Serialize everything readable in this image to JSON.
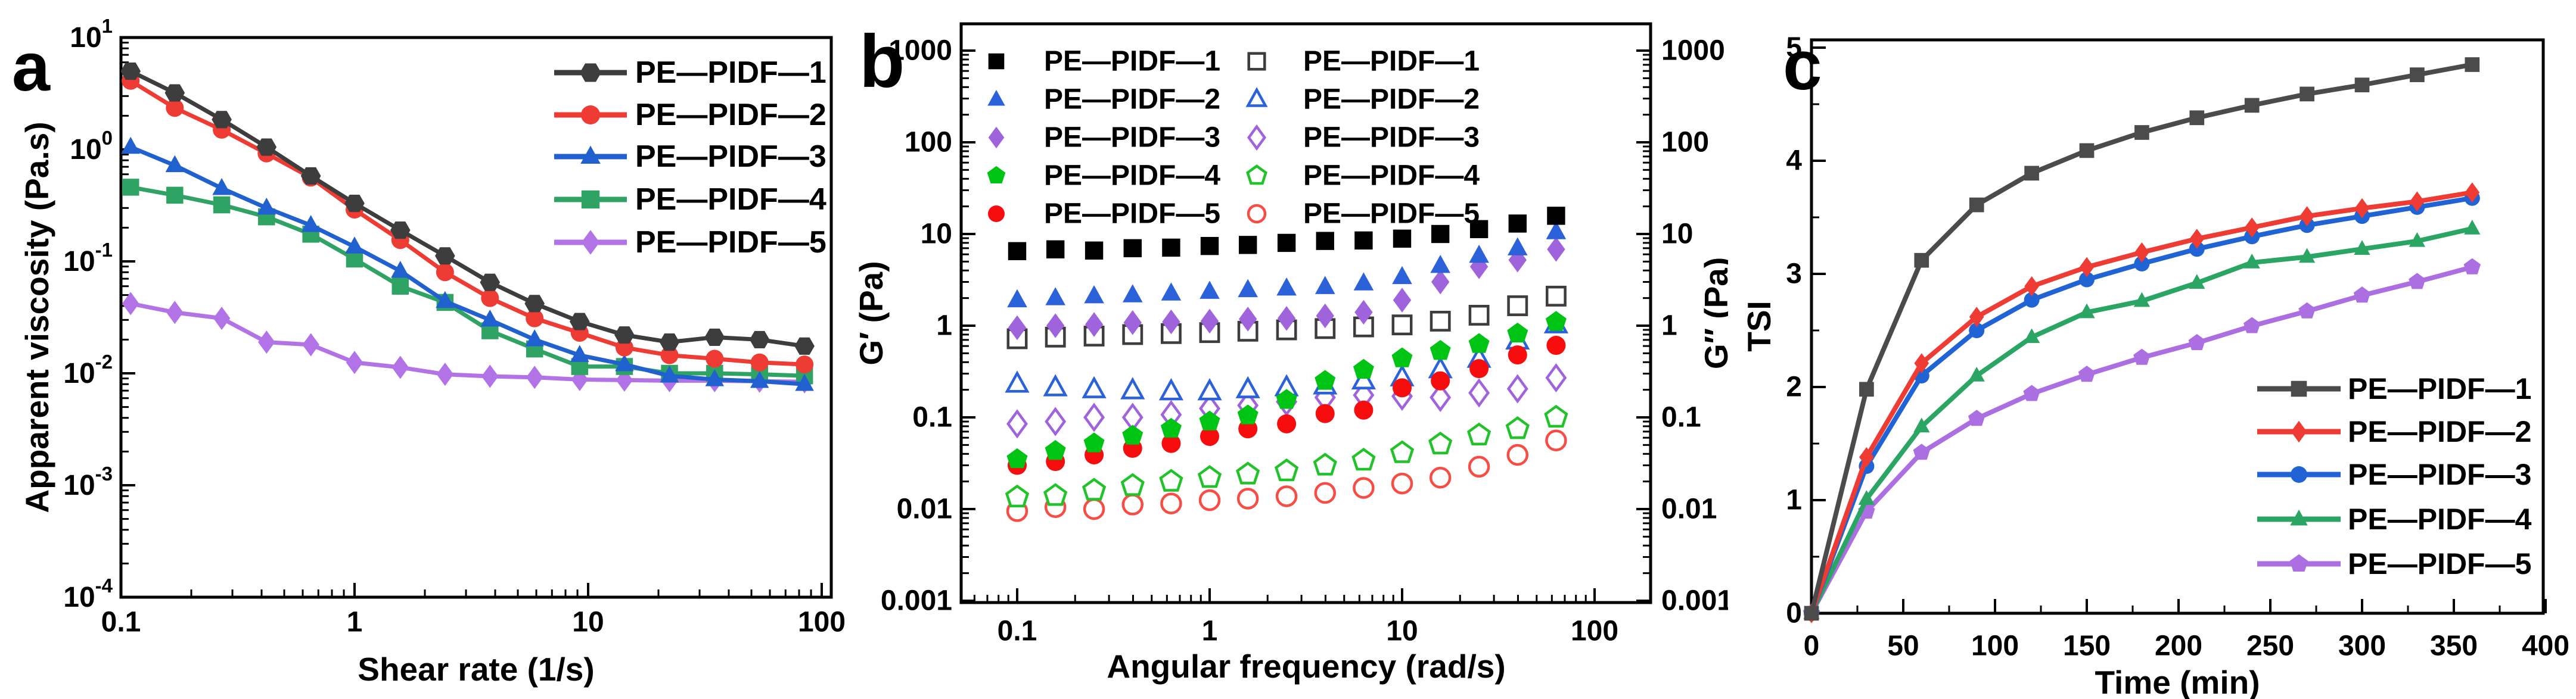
{
  "figure": {
    "background": "#ffffff",
    "panels": [
      {
        "letter": "a"
      },
      {
        "letter": "b"
      },
      {
        "letter": "c"
      }
    ]
  },
  "chart_data": [
    {
      "panel": "a",
      "type": "line",
      "xlabel": "Shear rate (1/s)",
      "ylabel": "Apparent viscosity (Pa.s)",
      "x_scale": "log",
      "y_scale": "log",
      "xlim": [
        0.1,
        110
      ],
      "ylim": [
        0.0001,
        10
      ],
      "grid": false,
      "legend_position": "top-right inside",
      "x_ticks": {
        "values": [
          0.1,
          1,
          10,
          100
        ],
        "labels": [
          "0.1",
          "1",
          "10",
          "100"
        ]
      },
      "y_ticks": {
        "values": [
          10,
          1,
          0.1,
          0.01,
          0.001,
          0.0001
        ],
        "labels": [
          {
            "base": "10",
            "exp": "1"
          },
          {
            "base": "10",
            "exp": "0"
          },
          {
            "base": "10",
            "exp": "-1"
          },
          {
            "base": "10",
            "exp": "-2"
          },
          {
            "base": "10",
            "exp": "-3"
          },
          {
            "base": "10",
            "exp": "-4"
          }
        ]
      },
      "x": [
        0.11,
        0.17,
        0.27,
        0.42,
        0.65,
        1.0,
        1.57,
        2.44,
        3.8,
        5.9,
        9.2,
        14.3,
        22.3,
        34.8,
        54.2,
        84.4
      ],
      "series": [
        {
          "name": "PE—PIDF—1",
          "color": "#3d3d3d",
          "marker": "hexagon",
          "values": [
            5.0,
            3.2,
            1.85,
            1.05,
            0.58,
            0.33,
            0.19,
            0.112,
            0.065,
            0.042,
            0.029,
            0.022,
            0.019,
            0.021,
            0.02,
            0.0175
          ]
        },
        {
          "name": "PE—PIDF—2",
          "color": "#ee3b33",
          "marker": "circle",
          "values": [
            4.1,
            2.35,
            1.5,
            0.92,
            0.56,
            0.29,
            0.155,
            0.08,
            0.047,
            0.031,
            0.023,
            0.017,
            0.0145,
            0.0135,
            0.0125,
            0.012
          ]
        },
        {
          "name": "PE—PIDF—3",
          "color": "#2161cf",
          "marker": "triangle",
          "values": [
            1.05,
            0.72,
            0.45,
            0.3,
            0.21,
            0.135,
            0.082,
            0.044,
            0.03,
            0.02,
            0.0145,
            0.012,
            0.0095,
            0.0088,
            0.0085,
            0.008
          ]
        },
        {
          "name": "PE—PIDF—4",
          "color": "#2fa364",
          "marker": "square",
          "values": [
            0.46,
            0.39,
            0.32,
            0.25,
            0.175,
            0.105,
            0.06,
            0.043,
            0.024,
            0.0165,
            0.0115,
            0.0115,
            0.01,
            0.01,
            0.0098,
            0.0095
          ]
        },
        {
          "name": "PE—PIDF—5",
          "color": "#b173e6",
          "marker": "diamond",
          "values": [
            0.042,
            0.035,
            0.031,
            0.019,
            0.018,
            0.0125,
            0.0113,
            0.0098,
            0.0094,
            0.0092,
            0.0088,
            0.0087,
            0.0086,
            0.0086,
            0.0085,
            0.0084
          ]
        }
      ]
    },
    {
      "panel": "b",
      "type": "scatter",
      "xlabel": "Angular frequency (rad/s)",
      "ylabel_left": "G′ (Pa)",
      "ylabel_right": "G″ (Pa)",
      "x_scale": "log",
      "y_scale": "log",
      "xlim": [
        0.05,
        195
      ],
      "ylim": [
        0.001,
        2000
      ],
      "grid": false,
      "legend_position": "top inside, two columns (left: G′ filled, right: G″ open)",
      "x_ticks": {
        "values": [
          0.1,
          1,
          10,
          100
        ],
        "labels": [
          "0.1",
          "1",
          "10",
          "100"
        ]
      },
      "y_ticks": {
        "values": [
          1000,
          100,
          10,
          1,
          0.1,
          0.01,
          0.001
        ],
        "labels": [
          "1000",
          "100",
          "10",
          "1",
          "0.1",
          "0.01",
          "0.001"
        ]
      },
      "x": [
        0.1,
        0.158,
        0.251,
        0.398,
        0.631,
        1.0,
        1.58,
        2.51,
        3.98,
        6.31,
        10.0,
        15.8,
        25.1,
        39.8,
        63.1
      ],
      "series": [
        {
          "name": "PE—PIDF—1",
          "group": "G′",
          "open": false,
          "color": "#000000",
          "marker": "square",
          "values": [
            6.5,
            6.8,
            6.6,
            7.0,
            7.1,
            7.4,
            7.6,
            8.0,
            8.4,
            8.5,
            8.9,
            10.0,
            11.3,
            13.0,
            15.8
          ]
        },
        {
          "name": "PE—PIDF—2",
          "group": "G′",
          "open": false,
          "color": "#2b62d9",
          "marker": "triangle",
          "values": [
            1.9,
            2.0,
            2.1,
            2.15,
            2.25,
            2.35,
            2.45,
            2.55,
            2.65,
            2.9,
            3.4,
            4.5,
            5.8,
            7.0,
            10.5
          ]
        },
        {
          "name": "PE—PIDF—3",
          "group": "G′",
          "open": false,
          "color": "#9f63dc",
          "marker": "diamond",
          "values": [
            0.95,
            1.0,
            1.03,
            1.08,
            1.1,
            1.12,
            1.18,
            1.2,
            1.28,
            1.4,
            1.9,
            3.0,
            4.4,
            5.2,
            6.8
          ]
        },
        {
          "name": "PE—PIDF—4",
          "group": "G′",
          "open": false,
          "color": "#00c414",
          "marker": "pentagon",
          "values": [
            0.035,
            0.043,
            0.052,
            0.063,
            0.075,
            0.09,
            0.105,
            0.155,
            0.25,
            0.33,
            0.44,
            0.53,
            0.63,
            0.82,
            1.1
          ]
        },
        {
          "name": "PE—PIDF—5",
          "group": "G′",
          "open": false,
          "color": "#f70d0d",
          "marker": "circle",
          "values": [
            0.03,
            0.033,
            0.039,
            0.046,
            0.052,
            0.062,
            0.075,
            0.085,
            0.11,
            0.12,
            0.21,
            0.25,
            0.34,
            0.48,
            0.61
          ]
        },
        {
          "name": "PE—PIDF—1",
          "group": "G″",
          "open": true,
          "color": "#3d3d3d",
          "marker": "square",
          "values": [
            0.72,
            0.75,
            0.77,
            0.8,
            0.82,
            0.84,
            0.87,
            0.9,
            0.93,
            0.97,
            1.02,
            1.12,
            1.3,
            1.65,
            2.1
          ]
        },
        {
          "name": "PE—PIDF—2",
          "group": "G″",
          "open": true,
          "color": "#2b62d9",
          "marker": "triangle",
          "values": [
            0.23,
            0.21,
            0.2,
            0.195,
            0.19,
            0.19,
            0.2,
            0.21,
            0.22,
            0.25,
            0.27,
            0.33,
            0.43,
            0.68,
            1.02
          ]
        },
        {
          "name": "PE—PIDF—3",
          "group": "G″",
          "open": true,
          "color": "#9f63dc",
          "marker": "diamond",
          "values": [
            0.085,
            0.09,
            0.1,
            0.1,
            0.107,
            0.125,
            0.135,
            0.148,
            0.165,
            0.175,
            0.17,
            0.165,
            0.185,
            0.205,
            0.27
          ]
        },
        {
          "name": "PE—PIDF—4",
          "group": "G″",
          "open": true,
          "color": "#22c32a",
          "marker": "pentagon",
          "values": [
            0.0135,
            0.014,
            0.016,
            0.018,
            0.02,
            0.022,
            0.024,
            0.026,
            0.03,
            0.034,
            0.041,
            0.051,
            0.064,
            0.075,
            0.1
          ]
        },
        {
          "name": "PE—PIDF—5",
          "group": "G″",
          "open": true,
          "color": "#f74d44",
          "marker": "circle",
          "values": [
            0.0095,
            0.0105,
            0.01,
            0.0112,
            0.0115,
            0.0125,
            0.013,
            0.0138,
            0.015,
            0.017,
            0.019,
            0.022,
            0.029,
            0.039,
            0.056
          ]
        }
      ]
    },
    {
      "panel": "c",
      "type": "line",
      "xlabel": "Time (min)",
      "ylabel": "TSI",
      "x_scale": "linear",
      "y_scale": "linear",
      "xlim": [
        0,
        400
      ],
      "ylim": [
        0,
        5.08
      ],
      "grid": false,
      "legend_position": "right inside",
      "x_ticks": {
        "values": [
          0,
          50,
          100,
          150,
          200,
          250,
          300,
          350,
          400
        ],
        "labels": [
          "0",
          "50",
          "100",
          "150",
          "200",
          "250",
          "300",
          "350",
          "400"
        ]
      },
      "y_ticks": {
        "values": [
          0,
          1,
          2,
          3,
          4,
          5
        ],
        "labels": [
          "0",
          "1",
          "2",
          "3",
          "4",
          "5"
        ]
      },
      "x": [
        0,
        30,
        60,
        90,
        120,
        150,
        180,
        210,
        240,
        270,
        300,
        330,
        360
      ],
      "series": [
        {
          "name": "PE—PIDF—1",
          "color": "#4b4b4b",
          "marker": "square",
          "values": [
            0,
            1.98,
            3.12,
            3.61,
            3.89,
            4.09,
            4.25,
            4.38,
            4.49,
            4.59,
            4.67,
            4.76,
            4.85
          ]
        },
        {
          "name": "PE—PIDF—2",
          "color": "#ee3b33",
          "marker": "diamond",
          "values": [
            0,
            1.38,
            2.21,
            2.62,
            2.89,
            3.06,
            3.19,
            3.31,
            3.41,
            3.51,
            3.58,
            3.64,
            3.72
          ]
        },
        {
          "name": "PE—PIDF—3",
          "color": "#1f63d4",
          "marker": "circle",
          "values": [
            0,
            1.3,
            2.1,
            2.5,
            2.77,
            2.95,
            3.09,
            3.22,
            3.33,
            3.43,
            3.51,
            3.59,
            3.67
          ]
        },
        {
          "name": "PE—PIDF—4",
          "color": "#2aa564",
          "marker": "triangle",
          "values": [
            0,
            1.01,
            1.65,
            2.1,
            2.44,
            2.66,
            2.76,
            2.92,
            3.1,
            3.15,
            3.22,
            3.29,
            3.4
          ]
        },
        {
          "name": "PE—PIDF—5",
          "color": "#ab6fe2",
          "marker": "pentagon",
          "values": [
            0,
            0.9,
            1.42,
            1.72,
            1.94,
            2.11,
            2.26,
            2.39,
            2.54,
            2.67,
            2.81,
            2.93,
            3.06
          ]
        }
      ]
    }
  ]
}
